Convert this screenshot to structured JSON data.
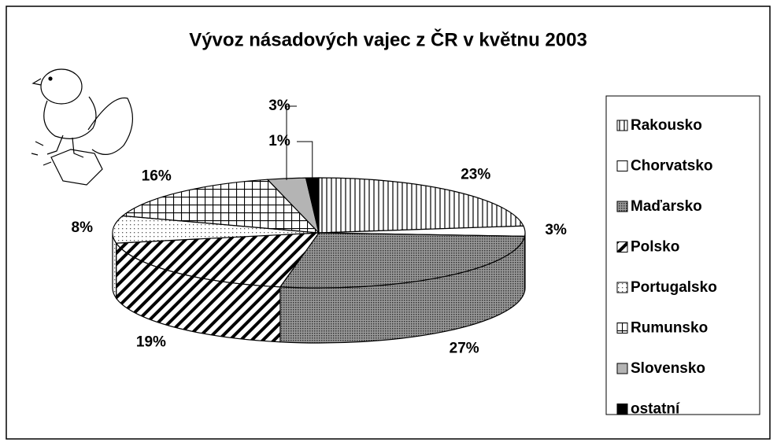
{
  "chart_data": {
    "type": "pie",
    "title": "Vývoz násadových vajec z ČR v květnu 2003",
    "categories": [
      "Rakousko",
      "Chorvatsko",
      "Maďarsko",
      "Polsko",
      "Portugalsko",
      "Rumunsko",
      "Slovensko",
      "ostatní"
    ],
    "values": [
      23,
      3,
      27,
      19,
      8,
      16,
      3,
      1
    ],
    "value_labels": [
      "23%",
      "3%",
      "27%",
      "19%",
      "8%",
      "16%",
      "3%",
      "1%"
    ],
    "patterns": [
      "vertical",
      "none",
      "dense-dots",
      "diagonal",
      "sparse-dots",
      "grid",
      "solid",
      "solid"
    ],
    "colors": [
      "#ffffff",
      "#ffffff",
      "#ffffff",
      "#ffffff",
      "#ffffff",
      "#ffffff",
      "#b4b4b4",
      "#000000"
    ],
    "legend": "right"
  }
}
